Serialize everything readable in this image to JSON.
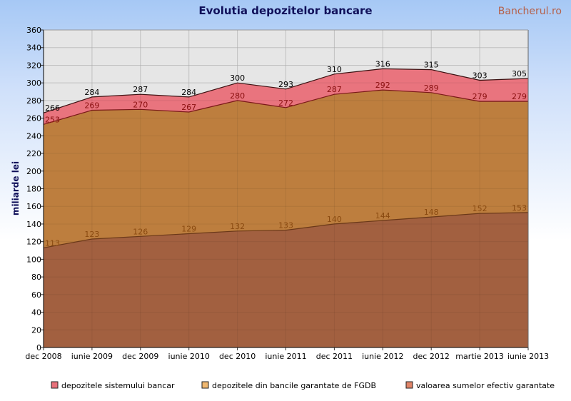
{
  "brand": "Bancherul.ro",
  "chart_data": {
    "type": "area",
    "title": "Evolutia depozitelor bancare",
    "ylabel": "miliarde lei",
    "xlabel": "",
    "ylim": [
      0,
      360
    ],
    "ytick_step": 20,
    "grid": true,
    "legend_position": "bottom",
    "categories": [
      "dec 2008",
      "iunie 2009",
      "dec 2009",
      "iunie 2010",
      "dec 2010",
      "iunie 2011",
      "dec 2011",
      "iunie 2012",
      "dec 2012",
      "martie 2013",
      "iunie 2013"
    ],
    "series": [
      {
        "name": "depozitele sistemului bancar",
        "values": [
          266,
          284,
          287,
          284,
          300,
          293,
          310,
          316,
          315,
          303,
          305
        ],
        "color": "#e8707a",
        "line_color": "#3a1010",
        "label_color": "#000000"
      },
      {
        "name": "depozitele din bancile garantate de FGDB",
        "values": [
          253,
          269,
          270,
          267,
          280,
          272,
          287,
          292,
          289,
          279,
          279
        ],
        "color": "#bb7e3c",
        "line_color": "#7a1818",
        "label_color": "#8a1010"
      },
      {
        "name": "valoarea sumelor efectiv garantate",
        "values": [
          113,
          123,
          126,
          129,
          132,
          133,
          140,
          144,
          148,
          152,
          153
        ],
        "color": "#a15f40",
        "line_color": "#6a3818",
        "label_color": "#8a4a10"
      }
    ],
    "legend_swatches": [
      "#e8707a",
      "#f0b870",
      "#e08468"
    ]
  }
}
